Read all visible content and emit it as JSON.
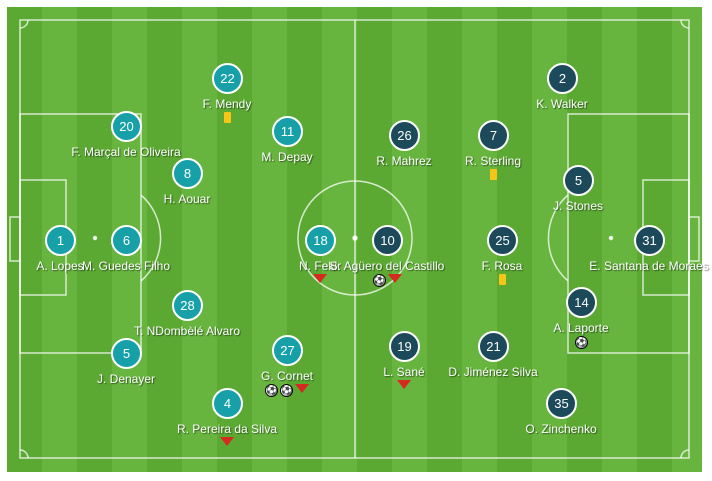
{
  "colors": {
    "home": "#17a0a8",
    "away": "#1d4a5a",
    "pitch": "#5ba933"
  },
  "home": [
    {
      "num": "1",
      "name": "A. Lopes",
      "ev": []
    },
    {
      "num": "6",
      "name": "M. Guedes Filho",
      "ev": []
    },
    {
      "num": "20",
      "name": "F. Marçal de Oliveira",
      "ev": []
    },
    {
      "num": "5",
      "name": "J. Denayer",
      "ev": []
    },
    {
      "num": "22",
      "name": "F. Mendy",
      "ev": [
        "yellow-card"
      ]
    },
    {
      "num": "8",
      "name": "H. Aouar",
      "ev": []
    },
    {
      "num": "28",
      "name": "T. NDombèlé Alvaro",
      "ev": []
    },
    {
      "num": "11",
      "name": "M. Depay",
      "ev": []
    },
    {
      "num": "18",
      "name": "N. Fekir",
      "ev": [
        "substituted-off"
      ]
    },
    {
      "num": "27",
      "name": "G. Cornet",
      "ev": [
        "goal",
        "goal",
        "substituted-off"
      ]
    },
    {
      "num": "4",
      "name": "R. Pereira da Silva",
      "ev": [
        "substituted-off"
      ]
    }
  ],
  "away": [
    {
      "num": "2",
      "name": "K. Walker",
      "ev": []
    },
    {
      "num": "26",
      "name": "R. Mahrez",
      "ev": []
    },
    {
      "num": "7",
      "name": "R. Sterling",
      "ev": [
        "yellow-card"
      ]
    },
    {
      "num": "5",
      "name": "J. Stones",
      "ev": []
    },
    {
      "num": "10",
      "name": "S. Agüero del Castillo",
      "ev": [
        "goal",
        "substituted-off"
      ]
    },
    {
      "num": "25",
      "name": "F. Rosa",
      "ev": [
        "yellow-card"
      ]
    },
    {
      "num": "31",
      "name": "E. Santana de Moraes",
      "ev": []
    },
    {
      "num": "14",
      "name": "A. Laporte",
      "ev": [
        "goal"
      ]
    },
    {
      "num": "19",
      "name": "L. Sané",
      "ev": [
        "substituted-off"
      ]
    },
    {
      "num": "21",
      "name": "D. Jiménez Silva",
      "ev": []
    },
    {
      "num": "35",
      "name": "O. Zinchenko",
      "ev": []
    }
  ]
}
